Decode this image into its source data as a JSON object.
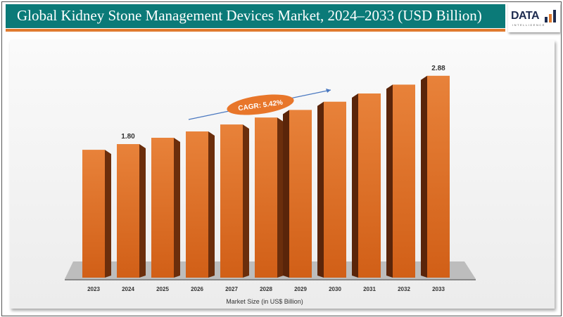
{
  "header": {
    "title": "Global Kidney Stone Management Devices Market, 2024–2033 (USD Billion)",
    "logo_text": "DATA",
    "logo_subtext": "INTELLIGENCE"
  },
  "colors": {
    "header": "#0b7a78",
    "accent": "#e07a2e",
    "bar": "#d9691f",
    "bar_side": "#6b2e0c"
  },
  "chart_data": {
    "type": "bar",
    "title": "Global Kidney Stone Management Devices Market, 2024–2033 (USD Billion)",
    "xlabel": "Market Size (in US$ Billion)",
    "ylabel": "",
    "categories": [
      "2023",
      "2024",
      "2025",
      "2026",
      "2027",
      "2028",
      "2029",
      "2030",
      "2031",
      "2032",
      "2033"
    ],
    "values": [
      1.71,
      1.8,
      1.9,
      2.0,
      2.11,
      2.22,
      2.34,
      2.47,
      2.6,
      2.74,
      2.88
    ],
    "data_labels": {
      "1": "1.80",
      "10": "2.88"
    },
    "annotation": "CAGR: 5.42%",
    "grid": false
  }
}
